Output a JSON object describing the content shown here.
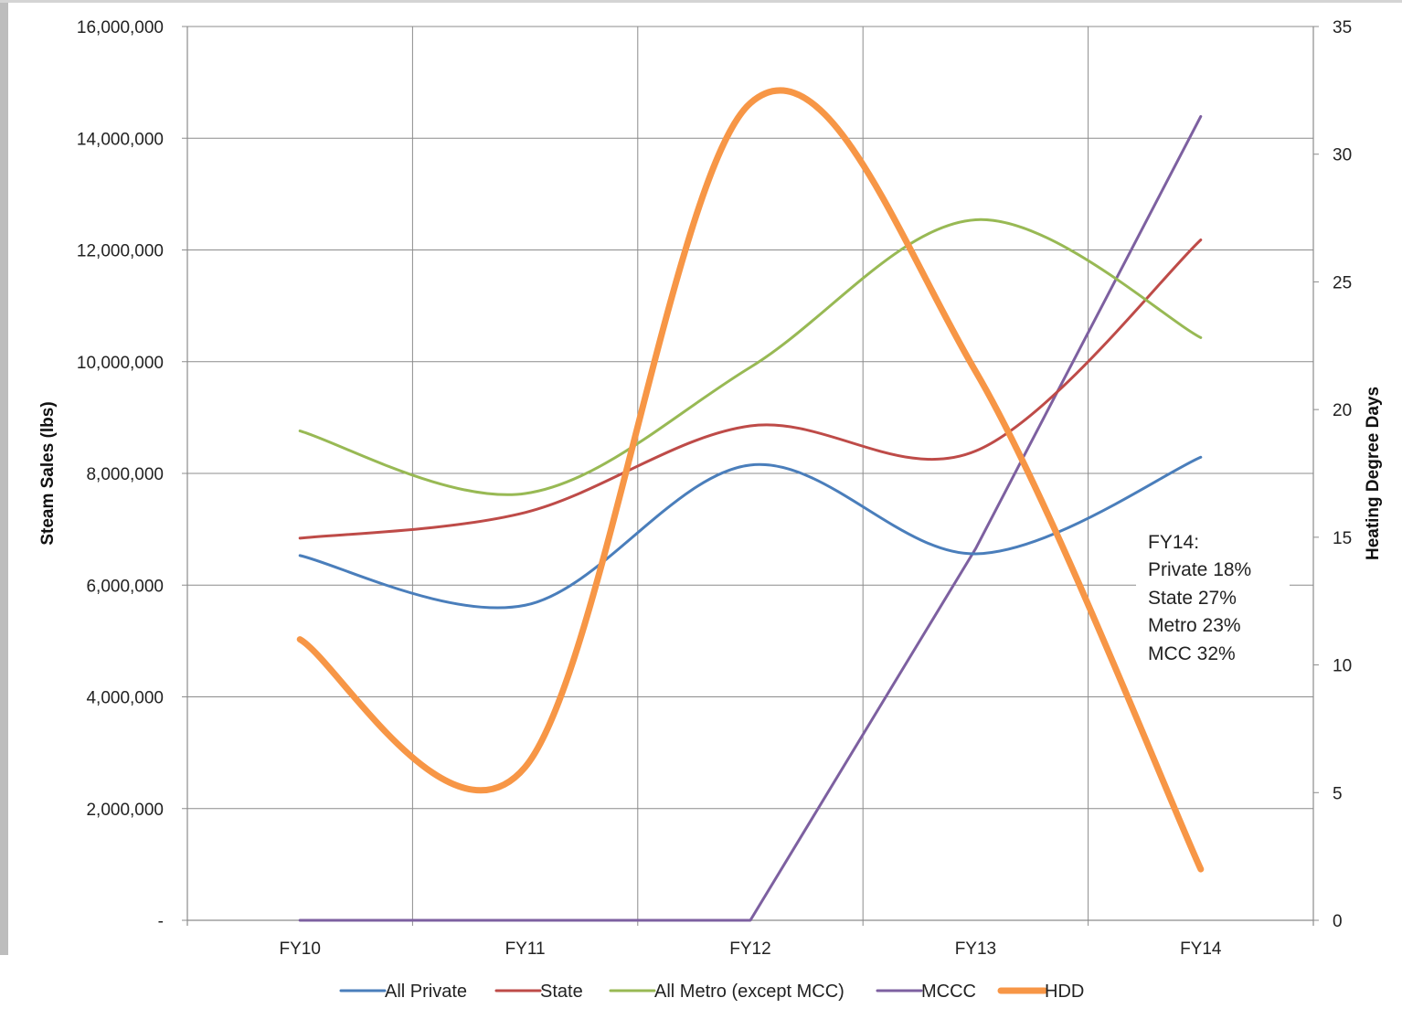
{
  "chart_data": {
    "type": "line",
    "categories": [
      "FY10",
      "FY11",
      "FY12",
      "FY13",
      "FY14"
    ],
    "ylabel": "Steam Sales (lbs)",
    "y2label": "Heating Degree Days",
    "ylim": [
      0,
      16000000
    ],
    "y2lim": [
      0,
      35
    ],
    "y_ticks": [
      {
        "value": 0,
        "label": "-"
      },
      {
        "value": 2000000,
        "label": "2,000,000"
      },
      {
        "value": 4000000,
        "label": "4,000,000"
      },
      {
        "value": 6000000,
        "label": "6,000,000"
      },
      {
        "value": 8000000,
        "label": "8,000,000"
      },
      {
        "value": 10000000,
        "label": "10,000,000"
      },
      {
        "value": 12000000,
        "label": "12,000,000"
      },
      {
        "value": 14000000,
        "label": "14,000,000"
      },
      {
        "value": 16000000,
        "label": "16,000,000"
      }
    ],
    "y2_ticks": [
      {
        "value": 0,
        "label": "0"
      },
      {
        "value": 5,
        "label": "5"
      },
      {
        "value": 10,
        "label": "10"
      },
      {
        "value": 15,
        "label": "15"
      },
      {
        "value": 20,
        "label": "20"
      },
      {
        "value": 25,
        "label": "25"
      },
      {
        "value": 30,
        "label": "30"
      },
      {
        "value": 35,
        "label": "35"
      }
    ],
    "grid": true,
    "legend_position": "bottom",
    "series": [
      {
        "name": "All Private",
        "color": "#4a7ebb",
        "axis": "left",
        "smooth": true,
        "values": [
          6530000,
          5640000,
          8150000,
          6560000,
          8290000
        ]
      },
      {
        "name": "State",
        "color": "#be4b48",
        "axis": "left",
        "smooth": true,
        "values": [
          6840000,
          7300000,
          8850000,
          8400000,
          12180000
        ]
      },
      {
        "name": "All Metro (except MCC)",
        "color": "#98b954",
        "axis": "left",
        "smooth": true,
        "values": [
          8760000,
          7640000,
          9900000,
          12540000,
          10430000
        ]
      },
      {
        "name": "MCCC",
        "color": "#7d60a0",
        "axis": "left",
        "smooth": false,
        "values": [
          0,
          0,
          0,
          6650000,
          14390000
        ]
      },
      {
        "name": "HDD",
        "color": "#f79646",
        "axis": "right",
        "smooth": true,
        "thick": true,
        "values": [
          11,
          6,
          32,
          21.5,
          2
        ]
      }
    ],
    "annotation": [
      "FY14:",
      "Private 18%",
      "State 27%",
      "Metro 23%",
      "MCC 32%"
    ]
  }
}
